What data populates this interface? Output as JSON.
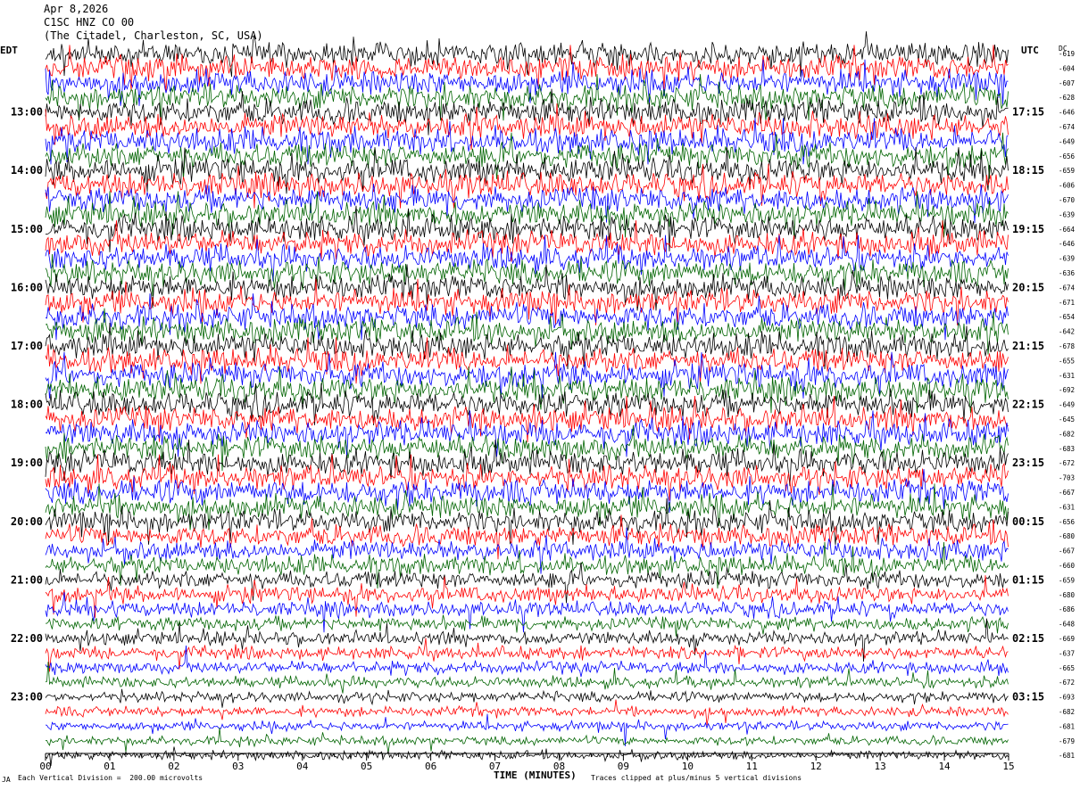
{
  "header": {
    "date": "Apr 8,2026",
    "channel": "C1SC HNZ CO 00",
    "station": "(The Citadel, Charleston, SC, USA)"
  },
  "left_zone_label": "EDT",
  "right_zone_label": "UTC",
  "dc_header": "DC",
  "footer": {
    "scale_note": "Each Vertical Division =  200.00 microvolts",
    "clip_note": "Traces clipped at plus/minus 5 vertical divisions",
    "corner_mark": "JA"
  },
  "colors": {
    "trace_cycle": [
      "#000000",
      "#ff0000",
      "#0000ff",
      "#006400"
    ],
    "background": "#ffffff"
  },
  "chart_data": {
    "type": "line",
    "subtype": "helicorder",
    "xlabel": "TIME (MINUTES)",
    "x_ticks": [
      "00",
      "01",
      "02",
      "03",
      "04",
      "05",
      "06",
      "07",
      "08",
      "09",
      "10",
      "11",
      "12",
      "13",
      "14",
      "15"
    ],
    "xlim": [
      0,
      15
    ],
    "left_hour_labels": [
      "13:00",
      "14:00",
      "15:00",
      "16:00",
      "17:00",
      "18:00",
      "19:00",
      "20:00",
      "21:00",
      "22:00",
      "23:00"
    ],
    "right_hour_labels": [
      "17:15",
      "18:15",
      "19:15",
      "20:15",
      "21:15",
      "22:15",
      "23:15",
      "00:15",
      "01:15",
      "02:15",
      "03:15"
    ],
    "first_label_row": 4,
    "rows_per_hour": 4,
    "dc_offsets": [
      -619,
      -604,
      -607,
      -628,
      -646,
      -674,
      -649,
      -656,
      -659,
      -606,
      -670,
      -639,
      -664,
      -646,
      -639,
      -636,
      -674,
      -671,
      -654,
      -642,
      -678,
      -655,
      -631,
      -692,
      -649,
      -645,
      -682,
      -683,
      -672,
      -703,
      -667,
      -631,
      -656,
      -680,
      -667,
      -660,
      -659,
      -680,
      -686,
      -648,
      -669,
      -637,
      -665,
      -672,
      -693,
      -682,
      -681,
      -679,
      -681
    ],
    "row_amplitude_level": [
      1.0,
      1.0,
      1.0,
      1.0,
      1.0,
      1.0,
      1.0,
      1.0,
      1.0,
      1.0,
      1.0,
      1.0,
      1.0,
      1.0,
      1.0,
      1.0,
      1.0,
      1.0,
      1.0,
      1.0,
      1.0,
      1.0,
      1.0,
      1.0,
      1.0,
      1.0,
      1.0,
      1.0,
      1.0,
      1.0,
      1.0,
      0.95,
      0.9,
      0.85,
      0.8,
      0.75,
      0.7,
      0.65,
      0.6,
      0.55,
      0.55,
      0.5,
      0.5,
      0.45,
      0.42,
      0.4,
      0.38,
      0.36,
      0.35
    ]
  }
}
